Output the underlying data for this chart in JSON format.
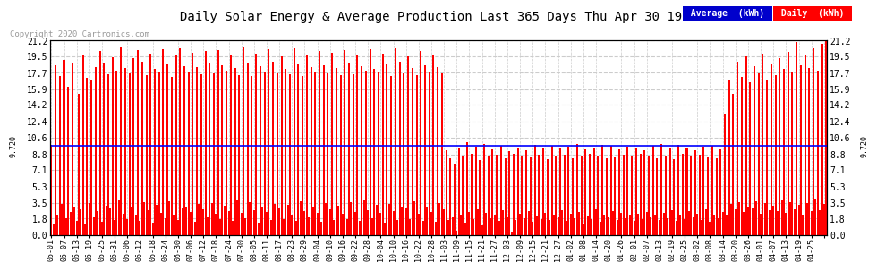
{
  "title": "Daily Solar Energy & Average Production Last 365 Days Thu Apr 30 19:54",
  "copyright": "Copyright 2020 Cartronics.com",
  "average_value": 9.72,
  "average_label": "9.720",
  "bar_color": "#ff0000",
  "average_line_color": "#0000ff",
  "background_color": "#ffffff",
  "plot_bg_color": "#ffffff",
  "grid_color": "#cccccc",
  "ylim": [
    0.0,
    21.2
  ],
  "yticks": [
    0.0,
    1.8,
    3.5,
    5.3,
    7.1,
    8.8,
    10.6,
    12.4,
    14.2,
    15.9,
    17.7,
    19.5,
    21.2
  ],
  "legend_avg_bg": "#0000cc",
  "legend_daily_bg": "#ff0000",
  "legend_avg_text": "Average  (kWh)",
  "legend_daily_text": "Daily  (kWh)",
  "x_tick_labels": [
    "05-01",
    "05-07",
    "05-13",
    "05-19",
    "05-25",
    "05-31",
    "06-06",
    "06-12",
    "06-18",
    "06-24",
    "06-30",
    "07-06",
    "07-12",
    "07-18",
    "07-24",
    "07-30",
    "08-05",
    "08-11",
    "08-17",
    "08-23",
    "08-29",
    "09-04",
    "09-10",
    "09-16",
    "09-22",
    "09-28",
    "10-04",
    "10-10",
    "10-16",
    "10-22",
    "10-28",
    "11-03",
    "11-09",
    "11-15",
    "11-21",
    "11-27",
    "12-03",
    "12-09",
    "12-15",
    "12-21",
    "12-27",
    "01-02",
    "01-08",
    "01-14",
    "01-20",
    "01-26",
    "02-01",
    "02-07",
    "02-13",
    "02-19",
    "02-25",
    "03-02",
    "03-08",
    "03-14",
    "03-20",
    "03-26",
    "04-01",
    "04-07",
    "04-13",
    "04-19",
    "04-25"
  ],
  "daily_values": [
    9.8,
    1.2,
    18.5,
    2.1,
    17.3,
    3.4,
    19.1,
    1.8,
    16.2,
    2.5,
    18.8,
    3.1,
    1.5,
    15.4,
    2.8,
    19.6,
    1.2,
    17.1,
    3.5,
    16.8,
    1.9,
    18.3,
    2.6,
    20.1,
    1.4,
    18.7,
    3.2,
    17.5,
    2.9,
    19.4,
    1.6,
    17.9,
    3.8,
    20.5,
    2.3,
    18.2,
    1.7,
    17.6,
    3.0,
    19.3,
    2.1,
    20.2,
    1.5,
    18.9,
    3.6,
    17.4,
    2.7,
    19.8,
    1.3,
    18.1,
    3.3,
    17.8,
    2.4,
    20.3,
    1.8,
    18.6,
    3.7,
    17.2,
    2.2,
    19.7,
    1.6,
    20.4,
    2.9,
    18.4,
    3.1,
    17.7,
    2.5,
    19.9,
    1.4,
    18.3,
    3.4,
    17.5,
    2.8,
    20.1,
    1.9,
    18.8,
    3.5,
    17.6,
    2.3,
    20.2,
    1.7,
    18.5,
    3.2,
    17.9,
    2.6,
    19.6,
    1.5,
    18.2,
    3.8,
    17.4,
    2.4,
    20.5,
    1.8,
    18.7,
    3.6,
    17.3,
    2.7,
    19.8,
    1.3,
    18.4,
    3.1,
    17.8,
    2.5,
    20.3,
    1.6,
    18.9,
    3.4,
    17.6,
    2.9,
    19.5,
    1.7,
    18.1,
    3.3,
    17.5,
    2.2,
    20.4,
    1.5,
    18.6,
    3.7,
    17.3,
    2.6,
    19.7,
    1.9,
    18.3,
    3.0,
    17.8,
    2.4,
    20.1,
    1.4,
    18.5,
    3.5,
    17.6,
    2.8,
    19.9,
    1.6,
    18.2,
    3.2,
    17.4,
    2.3,
    20.2,
    1.7,
    18.7,
    3.6,
    17.5,
    2.5,
    19.6,
    1.5,
    18.4,
    3.8,
    17.9,
    2.7,
    20.3,
    1.8,
    18.1,
    3.3,
    17.7,
    2.4,
    19.8,
    1.3,
    18.6,
    3.4,
    17.3,
    2.6,
    20.4,
    1.6,
    18.9,
    3.1,
    17.6,
    2.9,
    19.5,
    1.7,
    18.2,
    3.7,
    17.4,
    2.3,
    20.1,
    1.5,
    18.5,
    3.0,
    17.8,
    2.5,
    19.7,
    1.4,
    18.3,
    3.5,
    17.6,
    2.8,
    9.2,
    1.6,
    8.4,
    1.9,
    7.8,
    0.5,
    9.5,
    2.2,
    8.7,
    1.3,
    10.1,
    2.5,
    8.9,
    1.7,
    9.6,
    2.8,
    8.2,
    1.1,
    9.9,
    2.4,
    8.6,
    1.8,
    9.3,
    2.1,
    8.8,
    1.5,
    9.7,
    2.7,
    8.4,
    1.9,
    9.1,
    0.4,
    8.9,
    1.6,
    9.4,
    2.3,
    8.7,
    1.8,
    9.2,
    2.6,
    8.5,
    1.4,
    9.8,
    2.0,
    8.8,
    1.7,
    9.5,
    2.4,
    8.3,
    1.6,
    9.7,
    2.2,
    8.6,
    1.9,
    9.4,
    2.7,
    8.8,
    1.5,
    9.6,
    2.3,
    8.4,
    1.8,
    9.9,
    2.5,
    8.7,
    1.2,
    9.3,
    2.0,
    8.9,
    1.7,
    9.5,
    2.8,
    8.6,
    1.4,
    9.8,
    2.2,
    8.4,
    1.9,
    9.7,
    2.6,
    8.5,
    1.6,
    9.3,
    2.4,
    8.8,
    1.8,
    9.6,
    2.1,
    8.7,
    1.5,
    9.4,
    2.3,
    8.9,
    1.7,
    9.2,
    2.5,
    8.6,
    1.9,
    9.7,
    2.2,
    8.4,
    1.6,
    9.9,
    2.4,
    8.7,
    1.8,
    9.5,
    2.7,
    8.3,
    1.5,
    9.8,
    2.1,
    8.9,
    1.7,
    9.4,
    2.6,
    8.6,
    1.9,
    9.2,
    2.3,
    8.8,
    1.6,
    9.6,
    2.8,
    8.5,
    1.4,
    9.7,
    2.2,
    8.4,
    1.8,
    9.3,
    2.5,
    13.2,
    2.1,
    16.8,
    3.4,
    15.4,
    2.8,
    18.9,
    3.6,
    17.2,
    2.5,
    19.5,
    3.1,
    16.7,
    2.9,
    18.4,
    3.7,
    17.6,
    2.3,
    19.8,
    3.5,
    16.9,
    2.7,
    18.6,
    3.2,
    17.4,
    2.6,
    19.3,
    3.8,
    18.1,
    2.4,
    20.0,
    3.6,
    17.8,
    2.8,
    21.0,
    3.3,
    18.5,
    2.1,
    19.7,
    3.5,
    18.2,
    2.6,
    20.4,
    3.9,
    17.9,
    2.7,
    20.8,
    3.4,
    21.2
  ]
}
